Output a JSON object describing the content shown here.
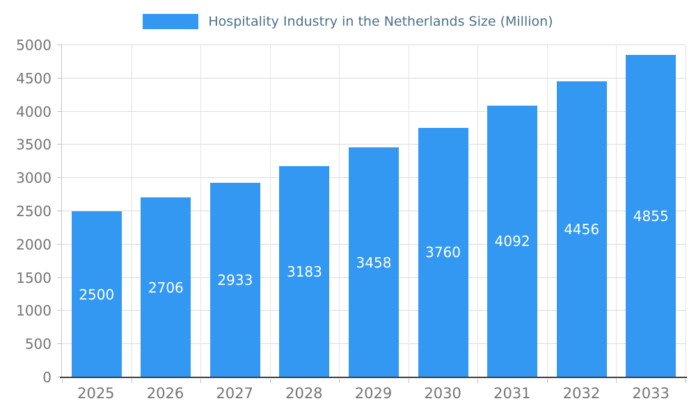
{
  "chart_data": {
    "type": "bar",
    "title": "Hospitality Industry in the Netherlands Size (Million)",
    "categories": [
      "2025",
      "2026",
      "2027",
      "2028",
      "2029",
      "2030",
      "2031",
      "2032",
      "2033"
    ],
    "values": [
      2500,
      2706,
      2933,
      3183,
      3458,
      3760,
      4092,
      4456,
      4855
    ],
    "xlabel": "",
    "ylabel": "",
    "ylim": [
      0,
      5000
    ],
    "yticks": [
      0,
      500,
      1000,
      1500,
      2000,
      2500,
      3000,
      3500,
      4000,
      4500,
      5000
    ],
    "grid": true,
    "legend_position": "top-center",
    "data_labels_position": "inside-center",
    "colors": {
      "bar": "#3398F2",
      "title_text": "#4D708C",
      "axis_text": "#757575",
      "gridline": "#DBDBDB",
      "gridline_vertical": "#E4E4E4",
      "axis_line": "#3D3D3D",
      "bar_label_text": "#FFFFFF"
    }
  }
}
